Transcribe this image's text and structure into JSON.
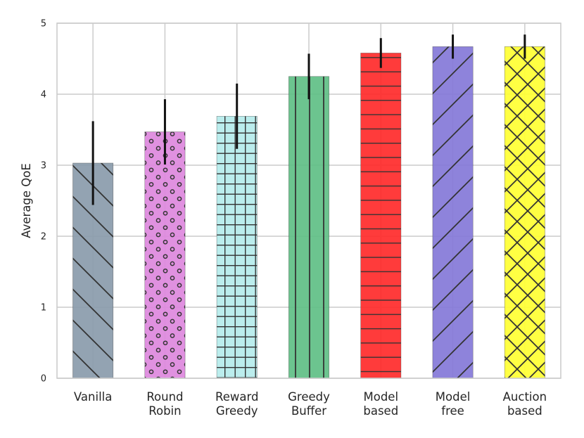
{
  "chart_data": {
    "type": "bar",
    "title": "",
    "xlabel": "",
    "ylabel": "Average QoE",
    "ylim": [
      0,
      5
    ],
    "yticks": [
      "0",
      "1",
      "2",
      "3",
      "4",
      "5"
    ],
    "grid": true,
    "categories": [
      [
        "Vanilla"
      ],
      [
        "Round",
        "Robin"
      ],
      [
        "Reward",
        "Greedy"
      ],
      [
        "Greedy",
        "Buffer"
      ],
      [
        "Model",
        "based"
      ],
      [
        "Model",
        "free"
      ],
      [
        "Auction",
        "based"
      ]
    ],
    "values": [
      3.03,
      3.47,
      3.69,
      4.25,
      4.58,
      4.67,
      4.67
    ],
    "error": [
      0.59,
      0.46,
      0.46,
      0.32,
      0.21,
      0.17,
      0.17
    ],
    "colors": [
      "#8a9bab",
      "#dd88dd",
      "#b5ecec",
      "#5fbf86",
      "#ff2a2a",
      "#8478d8",
      "#ffff33"
    ],
    "hatches": [
      "backslash",
      "dots",
      "grid",
      "vertical",
      "horizontal",
      "slash",
      "cross"
    ]
  }
}
